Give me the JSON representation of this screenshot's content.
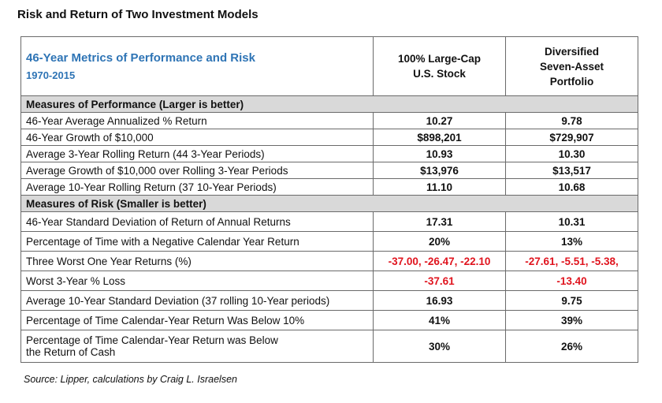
{
  "title": "Risk and Return of Two Investment Models",
  "table": {
    "header": {
      "title": "46-Year Metrics of Performance and Risk",
      "subtitle": "1970-2015",
      "col1": [
        "100% Large-Cap",
        "U.S. Stock"
      ],
      "col2": [
        "Diversified",
        "Seven-Asset",
        "Portfolio"
      ]
    },
    "performance_section": "Measures of Performance  (Larger is better)",
    "performance_rows": [
      {
        "label": "46-Year Average Annualized % Return",
        "col1": "10.27",
        "col2": "9.78"
      },
      {
        "label": "46-Year Growth of $10,000",
        "col1": "$898,201",
        "col2": "$729,907"
      },
      {
        "label": "Average 3-Year Rolling Return  (44 3-Year Periods)",
        "col1": "10.93",
        "col2": "10.30"
      },
      {
        "label": "Average Growth of $10,000 over Rolling 3-Year Periods",
        "col1": "$13,976",
        "col2": "$13,517"
      },
      {
        "label": "Average 10-Year Rolling Return  (37 10-Year Periods)",
        "col1": "11.10",
        "col2": "10.68"
      }
    ],
    "risk_section": "Measures of Risk  (Smaller is better)",
    "risk_rows": [
      {
        "label": "46-Year Standard Deviation of Return of Annual Returns",
        "col1": "17.31",
        "col2": "10.31"
      },
      {
        "label": "Percentage of Time with a Negative Calendar Year Return",
        "col1": "20%",
        "col2": "13%"
      },
      {
        "label": "Three Worst One Year Returns (%)",
        "col1": "-37.00, -26.47, -22.10",
        "col2": "-27.61, -5.51, -5.38,"
      },
      {
        "label": "Worst 3-Year % Loss",
        "col1": "-37.61",
        "col2": "-13.40"
      },
      {
        "label": "Average 10-Year Standard Deviation (37 rolling 10-Year periods)",
        "col1": "16.93",
        "col2": "9.75"
      },
      {
        "label": "Percentage of Time Calendar-Year Return Was Below 10%",
        "col1": "41%",
        "col2": "39%"
      },
      {
        "label_lines": [
          "Percentage of Time Calendar-Year Return was Below",
          "the Return of Cash"
        ],
        "col1": "30%",
        "col2": "26%"
      }
    ]
  },
  "source": "Source:  Lipper, calculations by Craig L. Israelsen",
  "colors": {
    "accent": "#2e74b5",
    "negative": "#e0141e",
    "section_bg": "#d9d9d9"
  }
}
